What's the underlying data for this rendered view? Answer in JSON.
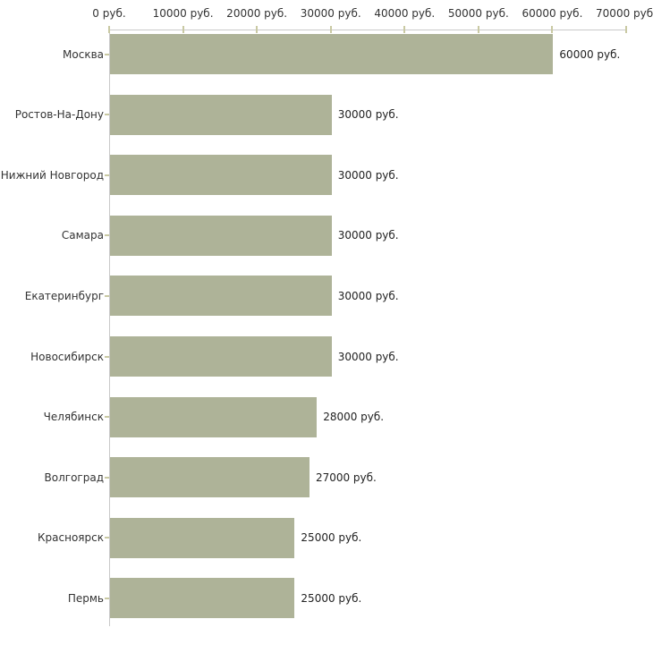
{
  "chart_data": {
    "type": "bar",
    "orientation": "horizontal",
    "title": "",
    "xlabel": "",
    "ylabel": "",
    "unit": "руб.",
    "categories": [
      "Москва",
      "Ростов-На-Дону",
      "Нижний Новгород",
      "Самара",
      "Екатеринбург",
      "Новосибирск",
      "Челябинск",
      "Волгоград",
      "Красноярск",
      "Пермь"
    ],
    "values": [
      60000,
      30000,
      30000,
      30000,
      30000,
      30000,
      28000,
      27000,
      25000,
      25000
    ],
    "value_labels": [
      "60000 руб.",
      "30000 руб.",
      "30000 руб.",
      "30000 руб.",
      "30000 руб.",
      "30000 руб.",
      "28000 руб.",
      "27000 руб.",
      "25000 руб.",
      "25000 руб."
    ],
    "x_ticks": [
      0,
      10000,
      20000,
      30000,
      40000,
      50000,
      60000,
      70000
    ],
    "x_tick_labels": [
      "0 руб.",
      "10000 руб.",
      "20000 руб.",
      "30000 руб.",
      "40000 руб.",
      "50000 руб.",
      "60000 руб.",
      "70000 руб."
    ],
    "xlim": [
      0,
      70000
    ],
    "grid": false,
    "legend": false,
    "colors": {
      "bar": "#aeb398",
      "axis": "#c9c9c9",
      "tick": "#c9c9a3",
      "category_text": "#333333",
      "value_text": "#222222",
      "tick_label_text": "#333333",
      "background": "#ffffff"
    }
  }
}
